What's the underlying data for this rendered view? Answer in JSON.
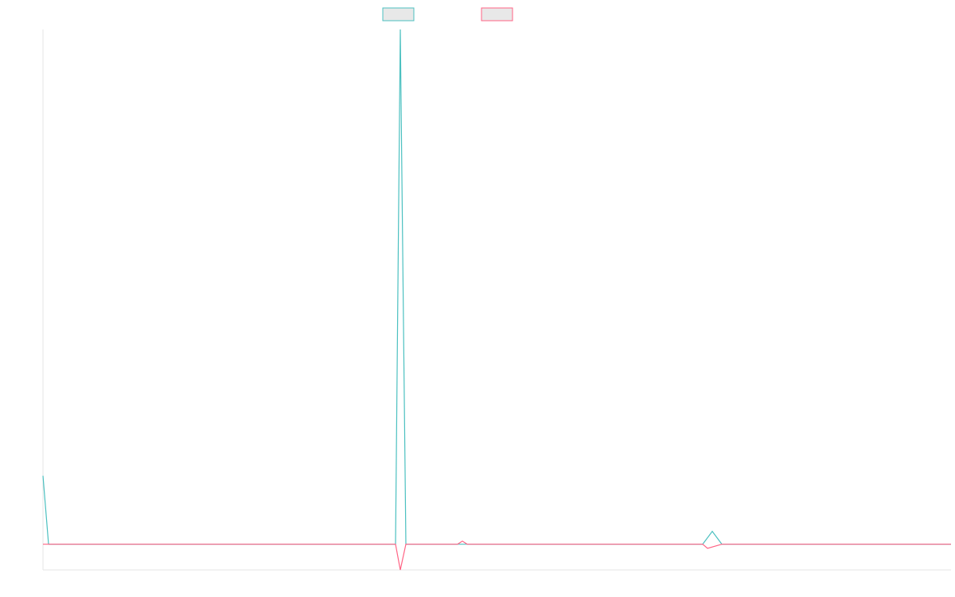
{
  "chart_data": {
    "type": "line",
    "xlim": [
      0,
      1141
    ],
    "ylim": [
      -5,
      100
    ],
    "series": [
      {
        "color": "#4bc0c0",
        "x": [
          0,
          7,
          443,
          449,
          456,
          829,
          841,
          853,
          1141
        ],
        "values": [
          13.3,
          0,
          0,
          100,
          0,
          0,
          2.5,
          0,
          0
        ]
      },
      {
        "color": "#ff6384",
        "x": [
          0,
          443,
          449,
          456,
          521,
          527,
          533,
          829,
          835,
          853,
          866,
          1141
        ],
        "values": [
          0,
          0,
          -5,
          0,
          0,
          0.6,
          0,
          0,
          -0.8,
          0,
          0,
          0
        ]
      }
    ]
  }
}
